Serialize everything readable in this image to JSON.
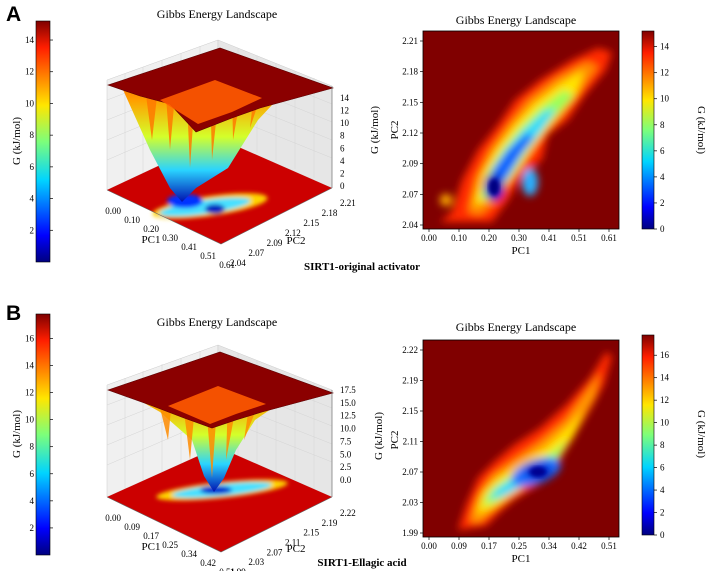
{
  "figure": {
    "panels": [
      {
        "letter": "A",
        "caption": "SIRT1-original activator",
        "colorbar_left": {
          "label": "G (kJ/mol)",
          "ticks": [
            "2",
            "4",
            "6",
            "8",
            "10",
            "12",
            "14"
          ],
          "min": 0,
          "max": 15.2
        },
        "plot3d": {
          "title": "Gibbs Energy Landscape",
          "xlabel": "PC1",
          "ylabel": "PC2",
          "zlabel": "G (kJ/mol)",
          "xticks": [
            "0.00",
            "0.10",
            "0.20",
            "0.30",
            "0.41",
            "0.51",
            "0.61"
          ],
          "yticks": [
            "2.04",
            "2.07",
            "2.09",
            "2.12",
            "2.15",
            "2.18",
            "2.21"
          ],
          "zticks": [
            "0",
            "2",
            "4",
            "6",
            "8",
            "10",
            "12",
            "14"
          ]
        },
        "plot2d": {
          "title": "Gibbs Energy Landscape",
          "xlabel": "PC1",
          "ylabel": "PC2",
          "xticks": [
            "0.00",
            "0.10",
            "0.20",
            "0.30",
            "0.41",
            "0.51",
            "0.61"
          ],
          "yticks": [
            "2.04",
            "2.07",
            "2.09",
            "2.12",
            "2.15",
            "2.18",
            "2.21"
          ],
          "colorbar": {
            "label": "G (kJ/mol)",
            "ticks": [
              "0",
              "2",
              "4",
              "6",
              "8",
              "10",
              "12",
              "14"
            ],
            "min": 0,
            "max": 15.2
          }
        }
      },
      {
        "letter": "B",
        "caption": "SIRT1-Ellagic acid",
        "colorbar_left": {
          "label": "G (kJ/mol)",
          "ticks": [
            "2",
            "4",
            "6",
            "8",
            "10",
            "12",
            "14",
            "16"
          ],
          "min": 0,
          "max": 17.8
        },
        "plot3d": {
          "title": "Gibbs Energy Landscape",
          "xlabel": "PC1",
          "ylabel": "PC2",
          "zlabel": "G (kJ/mol)",
          "xticks": [
            "0.00",
            "0.09",
            "0.17",
            "0.25",
            "0.34",
            "0.42",
            "0.51"
          ],
          "yticks": [
            "1.99",
            "2.03",
            "2.07",
            "2.11",
            "2.15",
            "2.19",
            "2.22"
          ],
          "zticks": [
            "0.0",
            "2.5",
            "5.0",
            "7.5",
            "10.0",
            "12.5",
            "15.0",
            "17.5"
          ]
        },
        "plot2d": {
          "title": "Gibbs Energy Landscape",
          "xlabel": "PC1",
          "ylabel": "PC2",
          "xticks": [
            "0.00",
            "0.09",
            "0.17",
            "0.25",
            "0.34",
            "0.42",
            "0.51"
          ],
          "yticks": [
            "1.99",
            "2.03",
            "2.07",
            "2.11",
            "2.15",
            "2.19",
            "2.22"
          ],
          "colorbar": {
            "label": "G (kJ/mol)",
            "ticks": [
              "0",
              "2",
              "4",
              "6",
              "8",
              "10",
              "12",
              "14",
              "16"
            ],
            "min": 0,
            "max": 17.8
          }
        }
      }
    ]
  },
  "chart_data": [
    {
      "type": "heatmap",
      "panel": "A",
      "title": "Gibbs Energy Landscape",
      "xlabel": "PC1",
      "ylabel": "PC2",
      "xlim": [
        0.0,
        0.63
      ],
      "ylim": [
        2.04,
        2.22
      ],
      "colorbar_label": "G (kJ/mol)",
      "zlim": [
        0,
        15.2
      ],
      "basins": [
        {
          "pc1": 0.25,
          "pc2": 2.078,
          "G": 0.5
        },
        {
          "pc1": 0.31,
          "pc2": 2.085,
          "G": 5
        },
        {
          "pc1": 0.42,
          "pc2": 2.16,
          "G": 9
        }
      ]
    },
    {
      "type": "surface3d",
      "panel": "A",
      "title": "Gibbs Energy Landscape",
      "xlabel": "PC1",
      "ylabel": "PC2",
      "zlabel": "G (kJ/mol)",
      "zlim": [
        0,
        15
      ]
    },
    {
      "type": "heatmap",
      "panel": "B",
      "title": "Gibbs Energy Landscape",
      "xlabel": "PC1",
      "ylabel": "PC2",
      "xlim": [
        0.0,
        0.53
      ],
      "ylim": [
        1.99,
        2.23
      ],
      "colorbar_label": "G (kJ/mol)",
      "zlim": [
        0,
        17.8
      ],
      "basins": [
        {
          "pc1": 0.33,
          "pc2": 2.09,
          "G": 0.5
        },
        {
          "pc1": 0.2,
          "pc2": 2.08,
          "G": 7
        },
        {
          "pc1": 0.45,
          "pc2": 2.17,
          "G": 10
        }
      ]
    },
    {
      "type": "surface3d",
      "panel": "B",
      "title": "Gibbs Energy Landscape",
      "xlabel": "PC1",
      "ylabel": "PC2",
      "zlabel": "G (kJ/mol)",
      "zlim": [
        0,
        17.5
      ]
    }
  ]
}
